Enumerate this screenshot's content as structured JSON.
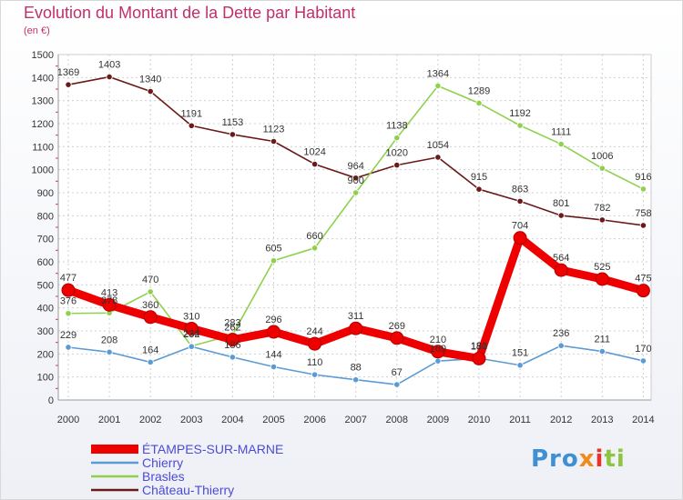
{
  "header": {
    "title": "Evolution du Montant de la Dette par Habitant",
    "subtitle": "(en €)"
  },
  "logo": {
    "text": "Proxiti"
  },
  "colors": {
    "title": "#c0306b",
    "etampes": "#ee0000",
    "chierry": "#5b9bd5",
    "brasles": "#8fd14f",
    "chateau": "#6b1a1a",
    "legend_text": "#4b4bd8"
  },
  "chart_data": {
    "type": "line",
    "x": [
      "2000",
      "2001",
      "2002",
      "2003",
      "2004",
      "2005",
      "2006",
      "2007",
      "2008",
      "2009",
      "2010",
      "2011",
      "2012",
      "2013",
      "2014"
    ],
    "ylim": [
      0,
      1500
    ],
    "yticks": [
      0,
      100,
      200,
      300,
      400,
      500,
      600,
      700,
      800,
      900,
      1000,
      1100,
      1200,
      1300,
      1400,
      1500
    ],
    "grid": true,
    "legend_position": "bottom-left",
    "series": [
      {
        "name": "ÉTAMPES-SUR-MARNE",
        "color": "#ee0000",
        "values": [
          477,
          413,
          360,
          310,
          262,
          296,
          244,
          311,
          269,
          210,
          180,
          704,
          564,
          525,
          475
        ]
      },
      {
        "name": "Chierry",
        "color": "#5b9bd5",
        "values": [
          229,
          208,
          164,
          232,
          186,
          144,
          110,
          88,
          67,
          169,
          181,
          151,
          236,
          211,
          170
        ]
      },
      {
        "name": "Brasles",
        "color": "#8fd14f",
        "values": [
          376,
          378,
          470,
          234,
          283,
          605,
          660,
          900,
          1138,
          1364,
          1289,
          1192,
          1111,
          1006,
          916
        ]
      },
      {
        "name": "Château-Thierry",
        "color": "#6b1a1a",
        "values": [
          1369,
          1403,
          1340,
          1191,
          1153,
          1123,
          1024,
          964,
          1020,
          1054,
          915,
          863,
          801,
          782,
          758
        ]
      }
    ]
  }
}
